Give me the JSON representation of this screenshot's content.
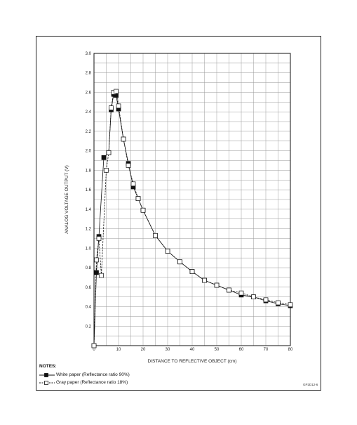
{
  "chart_data": {
    "type": "line",
    "title": "",
    "xlabel": "DISTANCE TO REFLECTIVE OBJECT (cm)",
    "ylabel": "ANALOG VOLTAGE OUTPUT (V)",
    "xlim": [
      0,
      80
    ],
    "ylim": [
      0,
      3.0
    ],
    "xticks": [
      0,
      10,
      20,
      30,
      40,
      50,
      60,
      70,
      80
    ],
    "yticks": [
      0.2,
      0.4,
      0.6,
      0.8,
      1.0,
      1.2,
      1.4,
      1.6,
      1.8,
      2.0,
      2.2,
      2.4,
      2.6,
      2.8,
      3.0
    ],
    "grid": true,
    "series": [
      {
        "name": "White paper (Reflectance ratio 90%)",
        "marker": "filled-square",
        "line": "solid",
        "color": "#111111",
        "x": [
          0,
          1,
          2,
          4,
          6,
          7,
          8,
          9,
          10,
          12,
          14,
          16,
          18,
          20,
          25,
          30,
          35,
          40,
          45,
          50,
          55,
          60,
          65,
          70,
          75,
          80
        ],
        "y": [
          0,
          0.75,
          1.12,
          1.93,
          1.98,
          2.42,
          2.58,
          2.57,
          2.43,
          2.12,
          1.87,
          1.63,
          1.51,
          1.39,
          1.13,
          0.97,
          0.86,
          0.76,
          0.67,
          0.62,
          0.57,
          0.52,
          0.5,
          0.46,
          0.43,
          0.41
        ]
      },
      {
        "name": "Gray paper (Reflectance ratio 18%)",
        "marker": "open-square",
        "line": "dashed",
        "color": "#111111",
        "x": [
          0,
          1,
          2,
          3,
          5,
          6,
          7,
          8,
          9,
          10,
          12,
          14,
          16,
          18,
          20,
          25,
          30,
          35,
          40,
          45,
          50,
          55,
          60,
          65,
          70,
          75,
          80
        ],
        "y": [
          0,
          0.88,
          1.1,
          0.72,
          1.8,
          1.98,
          2.44,
          2.6,
          2.61,
          2.46,
          2.12,
          1.85,
          1.66,
          1.51,
          1.39,
          1.13,
          0.97,
          0.86,
          0.76,
          0.67,
          0.62,
          0.57,
          0.54,
          0.5,
          0.47,
          0.44,
          0.42
        ]
      }
    ],
    "legend": "bottom-left"
  },
  "notes": {
    "title": "NOTES:",
    "items": [
      {
        "label": "White paper (Reflectance ratio 90%)"
      },
      {
        "label": "Gray paper (Reflectance ratio 18%)"
      }
    ]
  },
  "figure_id": "GP2D12-6"
}
